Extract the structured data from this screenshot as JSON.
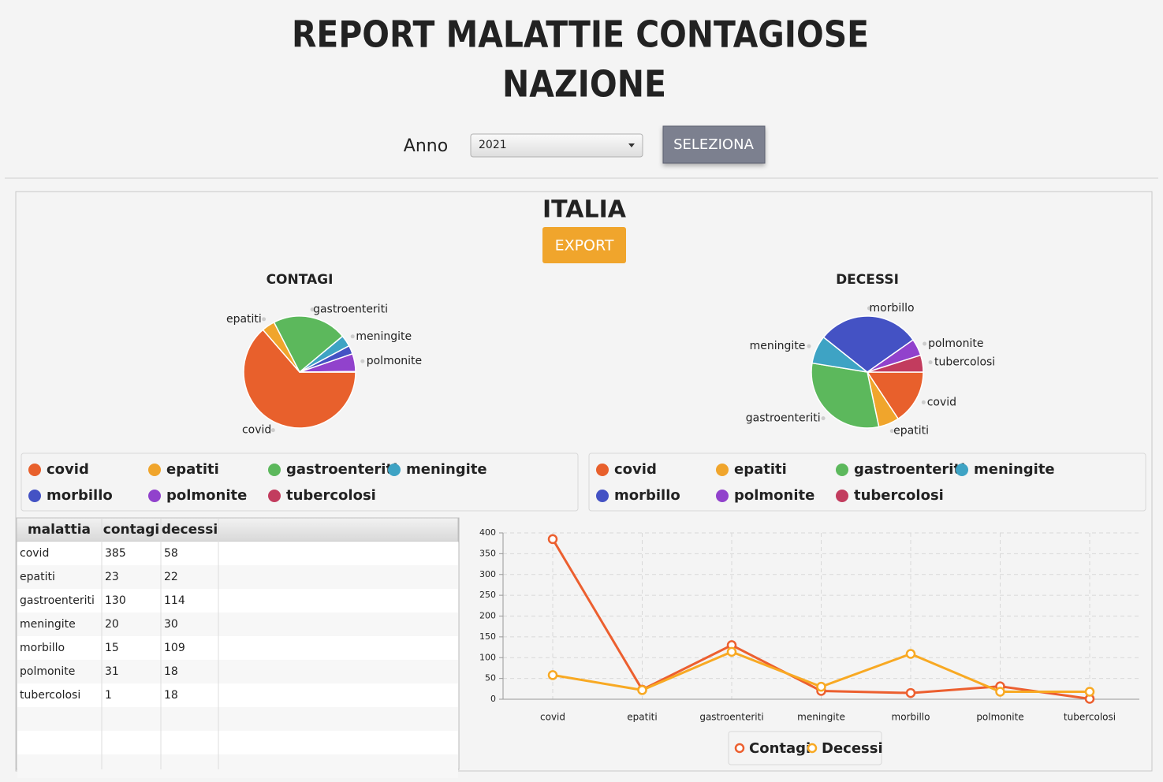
{
  "header": {
    "title_line1": "REPORT MALATTIE CONTAGIOSE",
    "title_line2": "NAZIONE"
  },
  "controls": {
    "label": "Anno",
    "year": "2021",
    "button": "SELEZIONA"
  },
  "panel": {
    "title": "ITALIA",
    "export": "EXPORT"
  },
  "chart_data": [
    {
      "type": "pie",
      "title": "CONTAGI",
      "categories": [
        "covid",
        "epatiti",
        "gastroenteriti",
        "meningite",
        "morbillo",
        "polmonite",
        "tubercolosi"
      ],
      "values": [
        385,
        23,
        130,
        20,
        15,
        31,
        1
      ],
      "colors": [
        "#e8602c",
        "#f0a52c",
        "#5cb85c",
        "#3ea3c4",
        "#4452c4",
        "#9142cc",
        "#c23c5e"
      ]
    },
    {
      "type": "pie",
      "title": "DECESSI",
      "categories": [
        "covid",
        "epatiti",
        "gastroenteriti",
        "meningite",
        "morbillo",
        "polmonite",
        "tubercolosi"
      ],
      "values": [
        58,
        22,
        114,
        30,
        109,
        18,
        18
      ],
      "colors": [
        "#e8602c",
        "#f0a52c",
        "#5cb85c",
        "#3ea3c4",
        "#4452c4",
        "#9142cc",
        "#c23c5e"
      ]
    },
    {
      "type": "line",
      "categories": [
        "covid",
        "epatiti",
        "gastroenteriti",
        "meningite",
        "morbillo",
        "polmonite",
        "tubercolosi"
      ],
      "series": [
        {
          "name": "Contagi",
          "color": "#ec5f2f",
          "values": [
            385,
            23,
            130,
            20,
            15,
            31,
            1
          ]
        },
        {
          "name": "Decessi",
          "color": "#f8a923",
          "values": [
            58,
            22,
            114,
            30,
            109,
            18,
            18
          ]
        }
      ],
      "ylim": [
        0,
        400
      ],
      "yticks": [
        0,
        50,
        100,
        150,
        200,
        250,
        300,
        350,
        400
      ],
      "grid": true
    }
  ],
  "table": {
    "columns": [
      "malattia",
      "contagi",
      "decessi"
    ],
    "rows": [
      [
        "covid",
        385,
        58
      ],
      [
        "epatiti",
        23,
        22
      ],
      [
        "gastroenteriti",
        130,
        114
      ],
      [
        "meningite",
        20,
        30
      ],
      [
        "morbillo",
        15,
        109
      ],
      [
        "polmonite",
        31,
        18
      ],
      [
        "tubercolosi",
        1,
        18
      ]
    ]
  }
}
